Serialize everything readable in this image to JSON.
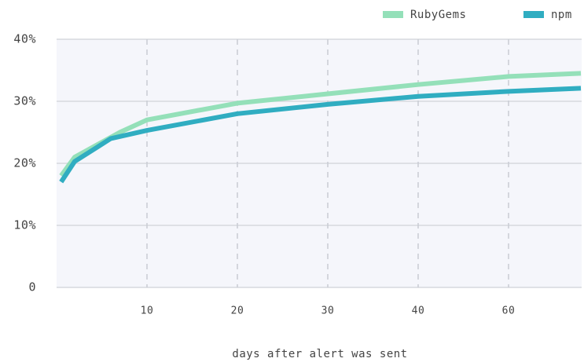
{
  "chart_data": {
    "type": "line",
    "x_label": "days after alert was sent",
    "series": [
      {
        "name": "RubyGems",
        "color": "#94e0b9",
        "x": [
          0.5,
          2,
          7,
          10,
          20,
          30,
          40,
          60,
          76
        ],
        "values": [
          18,
          21,
          25,
          27,
          29.7,
          31.2,
          32.7,
          34,
          34.5
        ]
      },
      {
        "name": "npm",
        "color": "#30adc1",
        "x": [
          0.5,
          2,
          6,
          10,
          20,
          30,
          40,
          60,
          76
        ],
        "values": [
          17,
          20.3,
          24,
          25.3,
          28,
          29.5,
          30.8,
          31.6,
          32.1
        ]
      }
    ],
    "xlim": [
      0,
      76
    ],
    "xticks": [
      10,
      20,
      30,
      40,
      60
    ],
    "ylim": [
      0,
      40
    ],
    "yticks": [
      0,
      {
        "value": 10,
        "label": "10%"
      },
      {
        "value": 20,
        "label": "20%"
      },
      {
        "value": 30,
        "label": "30%"
      },
      {
        "value": 40,
        "label": "40%"
      }
    ],
    "grid": true,
    "legend": "top-right"
  }
}
